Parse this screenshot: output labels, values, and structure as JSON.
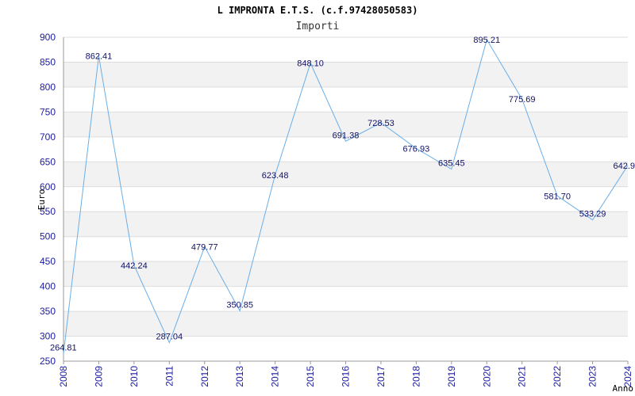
{
  "chart_data": {
    "type": "line",
    "title": "L IMPRONTA E.T.S. (c.f.97428050583)",
    "subtitle": "Importi",
    "ylabel": "Euro",
    "xlabel": "Anno",
    "ylim": [
      250,
      900
    ],
    "yticks": [
      250,
      300,
      350,
      400,
      450,
      500,
      550,
      600,
      650,
      700,
      750,
      800,
      850,
      900
    ],
    "x": [
      "2008",
      "2009",
      "2010",
      "2011",
      "2012",
      "2013",
      "2014",
      "2015",
      "2016",
      "2017",
      "2018",
      "2019",
      "2020",
      "2021",
      "2022",
      "2023",
      "2024"
    ],
    "values": [
      264.81,
      862.41,
      442.24,
      287.04,
      479.77,
      350.85,
      623.48,
      848.1,
      691.38,
      728.53,
      676.93,
      635.45,
      895.21,
      775.69,
      581.7,
      533.29,
      642.9
    ],
    "data_labels": [
      "264.81",
      "862.41",
      "442.24",
      "287.04",
      "479.77",
      "350.85",
      "623.48",
      "848.10",
      "691.38",
      "728.53",
      "676.93",
      "635.45",
      "895.21",
      "775.69",
      "581.70",
      "533.29",
      "642.9"
    ],
    "grid": "horizontal bands",
    "colors": {
      "line": "#6aaee8",
      "band": "#f2f2f2",
      "tick_text": "#1a1aa0",
      "label_text": "#111166"
    }
  }
}
